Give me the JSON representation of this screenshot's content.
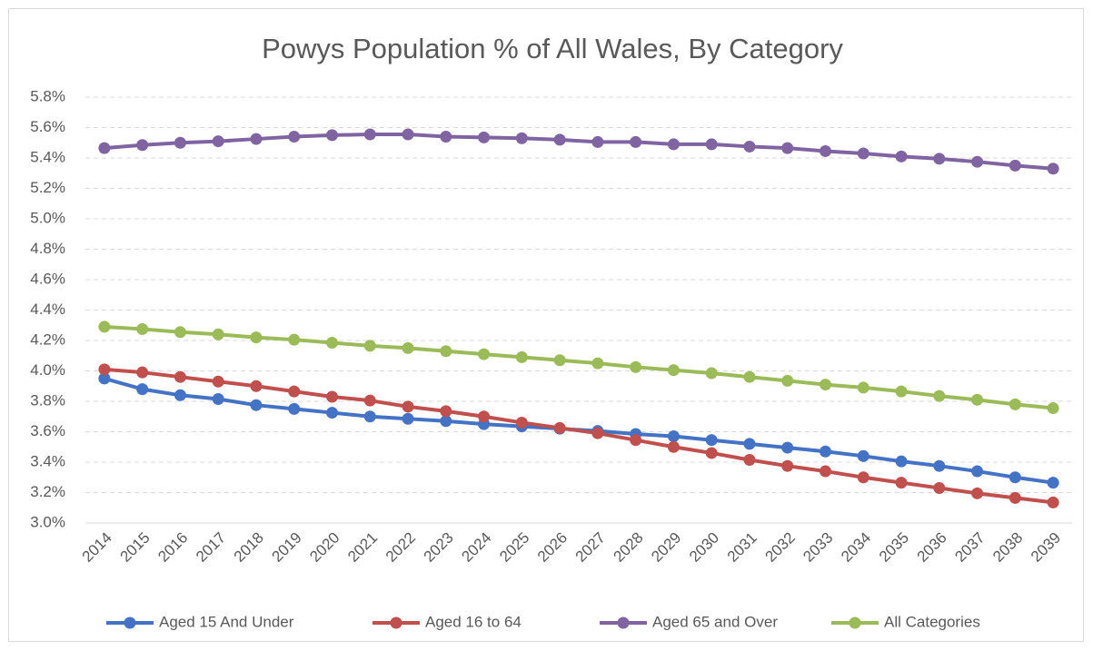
{
  "chart_data": {
    "type": "line",
    "title": "Powys Population % of All Wales, By Category",
    "categories": [
      "2014",
      "2015",
      "2016",
      "2017",
      "2018",
      "2019",
      "2020",
      "2021",
      "2022",
      "2023",
      "2024",
      "2025",
      "2026",
      "2027",
      "2028",
      "2029",
      "2030",
      "2031",
      "2032",
      "2033",
      "2034",
      "2035",
      "2036",
      "2037",
      "2038",
      "2039"
    ],
    "series": [
      {
        "name": "Aged 15 And Under",
        "color": "#4472c4",
        "values": [
          3.95,
          3.88,
          3.84,
          3.815,
          3.775,
          3.75,
          3.725,
          3.7,
          3.685,
          3.67,
          3.65,
          3.635,
          3.62,
          3.605,
          3.585,
          3.57,
          3.545,
          3.52,
          3.495,
          3.47,
          3.44,
          3.405,
          3.375,
          3.34,
          3.3,
          3.265
        ]
      },
      {
        "name": "Aged 16 to 64",
        "color": "#c0504d",
        "values": [
          4.01,
          3.99,
          3.96,
          3.93,
          3.9,
          3.865,
          3.83,
          3.805,
          3.765,
          3.735,
          3.7,
          3.66,
          3.625,
          3.59,
          3.545,
          3.5,
          3.46,
          3.415,
          3.375,
          3.34,
          3.3,
          3.265,
          3.23,
          3.195,
          3.165,
          3.135
        ]
      },
      {
        "name": "Aged 65 and Over",
        "color": "#8064a2",
        "values": [
          5.465,
          5.485,
          5.5,
          5.51,
          5.525,
          5.54,
          5.55,
          5.555,
          5.555,
          5.54,
          5.535,
          5.53,
          5.52,
          5.505,
          5.505,
          5.49,
          5.49,
          5.475,
          5.465,
          5.445,
          5.43,
          5.41,
          5.395,
          5.375,
          5.35,
          5.33
        ]
      },
      {
        "name": "All Categories",
        "color": "#9bbb59",
        "values": [
          4.29,
          4.275,
          4.255,
          4.24,
          4.22,
          4.205,
          4.185,
          4.165,
          4.15,
          4.13,
          4.11,
          4.09,
          4.07,
          4.05,
          4.025,
          4.005,
          3.985,
          3.96,
          3.935,
          3.91,
          3.89,
          3.865,
          3.835,
          3.81,
          3.78,
          3.755
        ]
      }
    ],
    "ylim": [
      3.0,
      5.8
    ],
    "yticks": [
      {
        "value": 3.0,
        "label": "3.0%"
      },
      {
        "value": 3.2,
        "label": "3.2%"
      },
      {
        "value": 3.4,
        "label": "3.4%"
      },
      {
        "value": 3.6,
        "label": "3.6%"
      },
      {
        "value": 3.8,
        "label": "3.8%"
      },
      {
        "value": 4.0,
        "label": "4.0%"
      },
      {
        "value": 4.2,
        "label": "4.2%"
      },
      {
        "value": 4.4,
        "label": "4.4%"
      },
      {
        "value": 4.6,
        "label": "4.6%"
      },
      {
        "value": 4.8,
        "label": "4.8%"
      },
      {
        "value": 5.0,
        "label": "5.0%"
      },
      {
        "value": 5.2,
        "label": "5.2%"
      },
      {
        "value": 5.4,
        "label": "5.4%"
      },
      {
        "value": 5.6,
        "label": "5.6%"
      },
      {
        "value": 5.8,
        "label": "5.8%"
      }
    ],
    "grid": true,
    "legend": "bottom"
  }
}
